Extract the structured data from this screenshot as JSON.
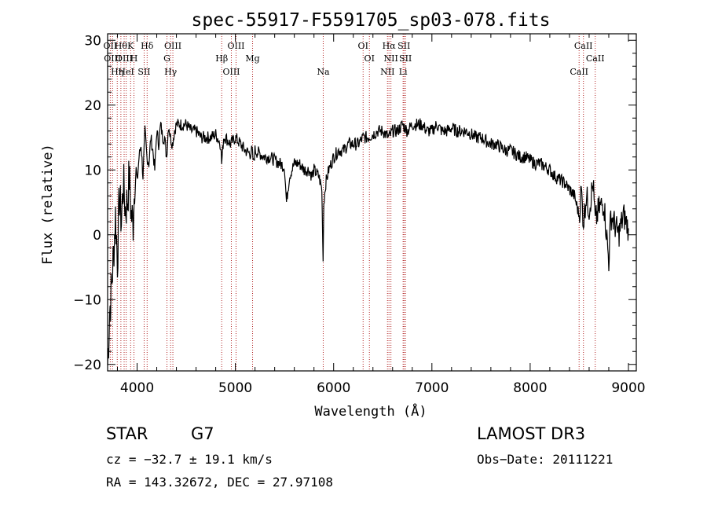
{
  "chart_data": {
    "type": "line",
    "title": "spec-55917-F5591705_sp03-078.fits",
    "xlabel": "Wavelength (Å)",
    "ylabel": "Flux (relative)",
    "xlim": [
      3700,
      9080
    ],
    "ylim": [
      -21,
      31
    ],
    "xticks": [
      4000,
      5000,
      6000,
      7000,
      8000,
      9000
    ],
    "yticks": [
      -20,
      -10,
      0,
      10,
      20,
      30
    ],
    "line_color": "#000000",
    "marker_color": "#b22222",
    "series": [
      {
        "name": "flux",
        "x": [
          3700,
          3720,
          3740,
          3760,
          3780,
          3800,
          3820,
          3840,
          3860,
          3880,
          3900,
          3920,
          3940,
          3960,
          3980,
          4000,
          4020,
          4040,
          4060,
          4080,
          4100,
          4120,
          4140,
          4160,
          4180,
          4200,
          4220,
          4240,
          4260,
          4280,
          4300,
          4320,
          4340,
          4360,
          4380,
          4400,
          4450,
          4500,
          4550,
          4600,
          4650,
          4700,
          4750,
          4800,
          4850,
          4861,
          4880,
          4900,
          4950,
          5000,
          5050,
          5100,
          5150,
          5170,
          5183,
          5200,
          5250,
          5300,
          5350,
          5400,
          5450,
          5500,
          5520,
          5550,
          5600,
          5650,
          5700,
          5750,
          5780,
          5800,
          5850,
          5880,
          5893,
          5900,
          5920,
          5950,
          6000,
          6050,
          6100,
          6150,
          6200,
          6250,
          6300,
          6350,
          6400,
          6450,
          6500,
          6563,
          6600,
          6650,
          6700,
          6750,
          6800,
          6850,
          6900,
          6950,
          7000,
          7050,
          7100,
          7150,
          7200,
          7250,
          7300,
          7350,
          7400,
          7450,
          7500,
          7550,
          7600,
          7650,
          7700,
          7750,
          7800,
          7850,
          7900,
          7950,
          8000,
          8050,
          8100,
          8150,
          8200,
          8250,
          8300,
          8350,
          8400,
          8450,
          8498,
          8520,
          8542,
          8570,
          8600,
          8640,
          8662,
          8700,
          8750,
          8800,
          8820,
          8850,
          8900,
          8950,
          9000
        ],
        "y": [
          -20,
          -12,
          -8,
          -3,
          3,
          -4,
          6,
          2,
          8,
          4,
          5,
          9,
          3,
          2,
          10,
          8,
          12,
          14,
          9,
          16,
          12,
          11,
          15,
          13,
          10,
          16,
          14,
          17,
          15,
          15,
          12,
          17,
          15,
          14,
          16,
          17,
          17,
          17,
          16,
          16,
          15,
          15,
          15,
          15.5,
          14,
          11,
          15,
          15,
          14,
          15,
          14,
          13,
          12.5,
          13,
          11,
          13,
          12.5,
          12,
          12,
          11.5,
          11,
          10.5,
          5,
          9,
          11,
          11,
          10,
          10,
          9,
          10,
          9,
          7,
          -4,
          5,
          8,
          10,
          12,
          13,
          13,
          14,
          14,
          14,
          15,
          15,
          15.5,
          16,
          16,
          15,
          16,
          16,
          17,
          16,
          17,
          17,
          17,
          16,
          16,
          17,
          16,
          16,
          16.5,
          16,
          16,
          16,
          15.5,
          15,
          15,
          14.5,
          14,
          14,
          13.5,
          13,
          13,
          12.5,
          12,
          12,
          11.5,
          11,
          11,
          10.5,
          10,
          9,
          8.5,
          8,
          7,
          6,
          3,
          7,
          2,
          6,
          4,
          8,
          2,
          4,
          5,
          -4,
          3,
          2,
          0,
          3,
          1
        ]
      }
    ],
    "line_markers": [
      {
        "wl": 3727,
        "label": "OII"
      },
      {
        "wl": 3750,
        "label": "OIII"
      },
      {
        "wl": 3798,
        "label": "Hη"
      },
      {
        "wl": 3835,
        "label": "Hθ"
      },
      {
        "wl": 3868,
        "label": "OIII"
      },
      {
        "wl": 3889,
        "label": "HeI"
      },
      {
        "wl": 3934,
        "label": "K"
      },
      {
        "wl": 3968,
        "label": "H"
      },
      {
        "wl": 4072,
        "label": "SII"
      },
      {
        "wl": 4102,
        "label": "Hδ"
      },
      {
        "wl": 4304,
        "label": "G"
      },
      {
        "wl": 4341,
        "label": "Hγ"
      },
      {
        "wl": 4364,
        "label": "OIII"
      },
      {
        "wl": 4861,
        "label": "Hβ"
      },
      {
        "wl": 4959,
        "label": "OIII"
      },
      {
        "wl": 5007,
        "label": "OIII"
      },
      {
        "wl": 5175,
        "label": "Mg"
      },
      {
        "wl": 5894,
        "label": "Na"
      },
      {
        "wl": 6300,
        "label": "OI"
      },
      {
        "wl": 6364,
        "label": "OI"
      },
      {
        "wl": 6548,
        "label": "NII"
      },
      {
        "wl": 6563,
        "label": "Hα"
      },
      {
        "wl": 6583,
        "label": "NII"
      },
      {
        "wl": 6707,
        "label": "Li"
      },
      {
        "wl": 6716,
        "label": "SII"
      },
      {
        "wl": 6731,
        "label": "SII"
      },
      {
        "wl": 8498,
        "label": "CaII"
      },
      {
        "wl": 8542,
        "label": "CaII"
      },
      {
        "wl": 8662,
        "label": "CaII"
      }
    ]
  },
  "footer": {
    "object_class": "STAR",
    "subclass": "G7",
    "survey": "LAMOST DR3",
    "redshift": "cz = −32.7 ± 19.1 km/s",
    "obs_date": "Obs−Date: 20111221",
    "coords": "RA = 143.32672, DEC =  27.97108"
  }
}
